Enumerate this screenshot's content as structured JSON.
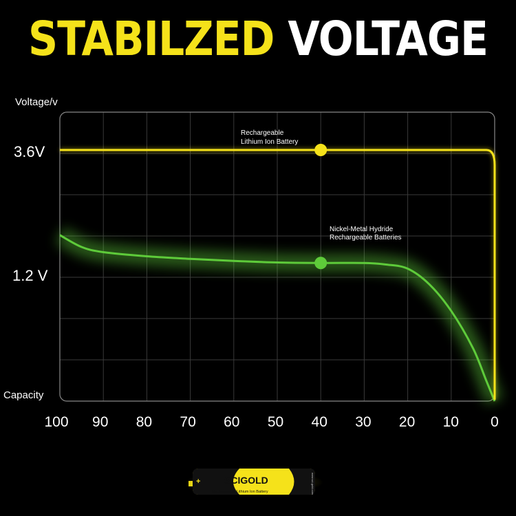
{
  "title": {
    "word1": "STABILZED",
    "word2": "VOLTAGE",
    "word1_color": "#f5e21a",
    "word2_color": "#ffffff"
  },
  "chart_data": {
    "type": "line",
    "title": "STABILZED VOLTAGE",
    "ylabel": "Voltage/v",
    "xlabel": "Capacity",
    "x_ticks": [
      "100",
      "90",
      "80",
      "70",
      "60",
      "50",
      "40",
      "30",
      "20",
      "10",
      "0"
    ],
    "y_ticks": [
      "3.6V",
      "1.2 V"
    ],
    "xlim": [
      100,
      0
    ],
    "grid": true,
    "series": [
      {
        "name": "Rechargeable Lithium Ion Battery",
        "label_line1": "Rechargeable",
        "label_line2": "Lithium Ion Battery",
        "color": "#f5e21a",
        "marker_x": 40,
        "points": [
          [
            100,
            3.6
          ],
          [
            90,
            3.6
          ],
          [
            80,
            3.6
          ],
          [
            70,
            3.6
          ],
          [
            60,
            3.6
          ],
          [
            50,
            3.6
          ],
          [
            40,
            3.6
          ],
          [
            30,
            3.6
          ],
          [
            20,
            3.6
          ],
          [
            10,
            3.6
          ],
          [
            3,
            3.6
          ],
          [
            0.5,
            3.4
          ],
          [
            0,
            0
          ]
        ]
      },
      {
        "name": "Nickel-Metal Hydride Rechargeable Batteries",
        "label_line1": "Nickel-Metal Hydride",
        "label_line2": "Rechargeable Batteries",
        "color": "#5ecb3a",
        "marker_x": 40,
        "points": [
          [
            100,
            1.95
          ],
          [
            95,
            1.72
          ],
          [
            90,
            1.62
          ],
          [
            80,
            1.54
          ],
          [
            70,
            1.49
          ],
          [
            60,
            1.45
          ],
          [
            50,
            1.42
          ],
          [
            40,
            1.41
          ],
          [
            30,
            1.41
          ],
          [
            25,
            1.38
          ],
          [
            20,
            1.3
          ],
          [
            15,
            1.1
          ],
          [
            10,
            0.85
          ],
          [
            5,
            0.5
          ],
          [
            2,
            0.2
          ],
          [
            0,
            0
          ]
        ]
      }
    ]
  },
  "battery": {
    "brand": "SCIGOLD",
    "caption": "Rechargeable Lithium Ion Battery",
    "url": "www.sci-gold.com",
    "plus": "+"
  }
}
